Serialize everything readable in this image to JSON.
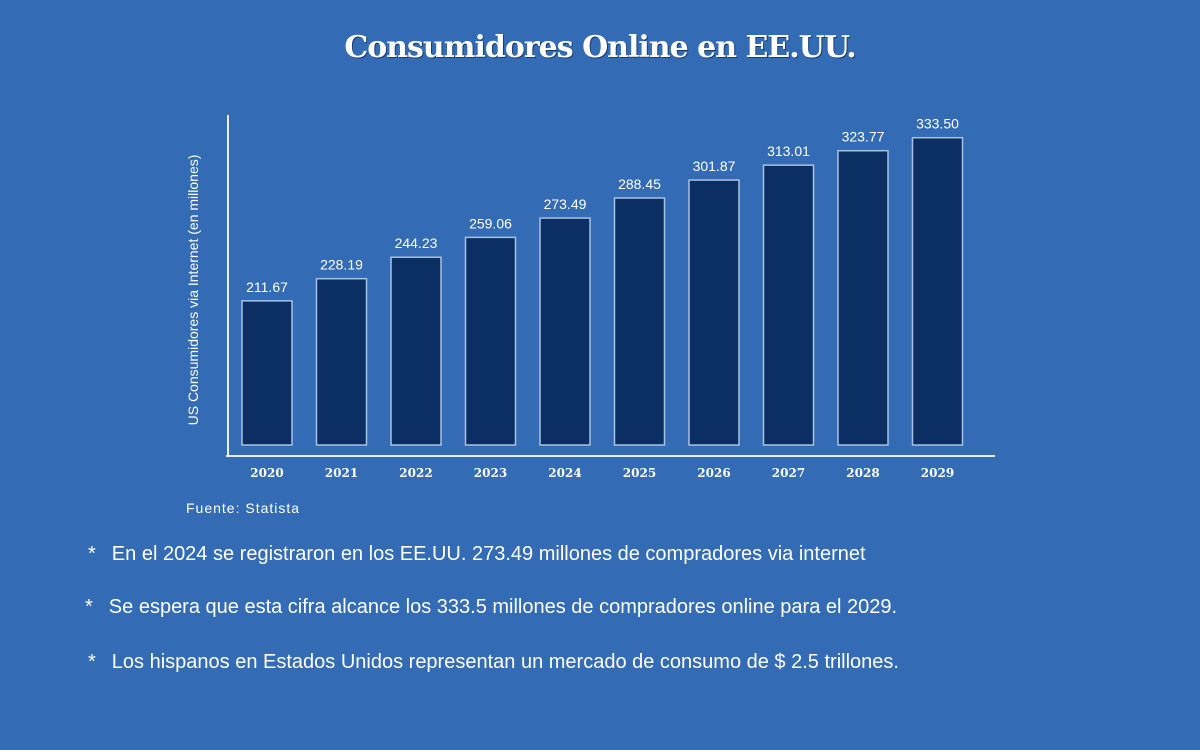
{
  "chart_data": {
    "type": "bar",
    "title": "Consumidores Online en EE.UU.",
    "ylabel": "US Consumidores via Internet (en millones)",
    "xlabel": "",
    "categories": [
      "2020",
      "2021",
      "2022",
      "2023",
      "2024",
      "2025",
      "2026",
      "2027",
      "2028",
      "2029"
    ],
    "values": [
      211.67,
      228.19,
      244.23,
      259.06,
      273.49,
      288.45,
      301.87,
      313.01,
      323.77,
      333.5
    ],
    "data_labels": [
      "211.67",
      "228.19",
      "244.23",
      "259.06",
      "273.49",
      "288.45",
      "301.87",
      "313.01",
      "323.77",
      "333.50"
    ],
    "ylim": [
      104,
      340
    ],
    "grid": false,
    "bar_color": "#0b2f63",
    "background_color": "#336cb4"
  },
  "source": "Fuente: Statista",
  "notes": [
    {
      "bullet": "*",
      "text": "En el 2024 se registraron en los EE.UU. 273.49 millones de compradores via internet"
    },
    {
      "bullet": "*",
      "text": "Se espera que esta cifra alcance los 333.5 millones de compradores online para el 2029."
    },
    {
      "bullet": "*",
      "text": "Los hispanos en Estados Unidos representan un mercado de consumo de $ 2.5 trillones."
    }
  ]
}
